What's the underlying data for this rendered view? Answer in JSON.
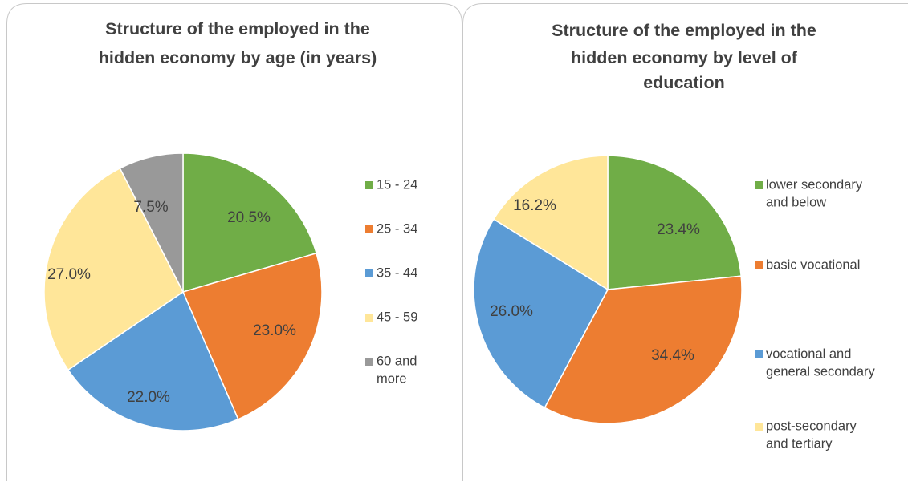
{
  "chart_data": [
    {
      "type": "pie",
      "title": [
        "Structure of the employed in the",
        "hidden economy by age (in years)"
      ],
      "categories": [
        "15 - 24",
        "25 - 34",
        "35 - 44",
        "45 - 59",
        "60 and more"
      ],
      "legend_lines": [
        [
          "15 - 24"
        ],
        [
          "25 - 34"
        ],
        [
          "35 - 44"
        ],
        [
          "45 - 59"
        ],
        [
          "60 and",
          "more"
        ]
      ],
      "values": [
        20.5,
        23.0,
        22.0,
        27.0,
        7.5
      ],
      "labels": [
        "20.5%",
        "23.0%",
        "22.0%",
        "27.0%",
        "7.5%"
      ],
      "colors": [
        "#70ad47",
        "#ed7d31",
        "#5b9bd5",
        "#ffe699",
        "#999999"
      ],
      "legend_position": "right"
    },
    {
      "type": "pie",
      "title": [
        "Structure of the employed in the",
        "hidden economy by level of",
        "education"
      ],
      "categories": [
        "lower secondary and below",
        "basic vocational",
        "vocational and general secondary",
        "post-secondary and tertiary"
      ],
      "legend_lines": [
        [
          "lower secondary",
          "and below"
        ],
        [
          "basic vocational"
        ],
        [
          "vocational and",
          "general secondary"
        ],
        [
          "post-secondary",
          "and tertiary"
        ]
      ],
      "values": [
        23.4,
        34.4,
        26.0,
        16.2
      ],
      "labels": [
        "23.4%",
        "34.4%",
        "26.0%",
        "16.2%"
      ],
      "colors": [
        "#70ad47",
        "#ed7d31",
        "#5b9bd5",
        "#ffe699"
      ],
      "legend_position": "right"
    }
  ]
}
